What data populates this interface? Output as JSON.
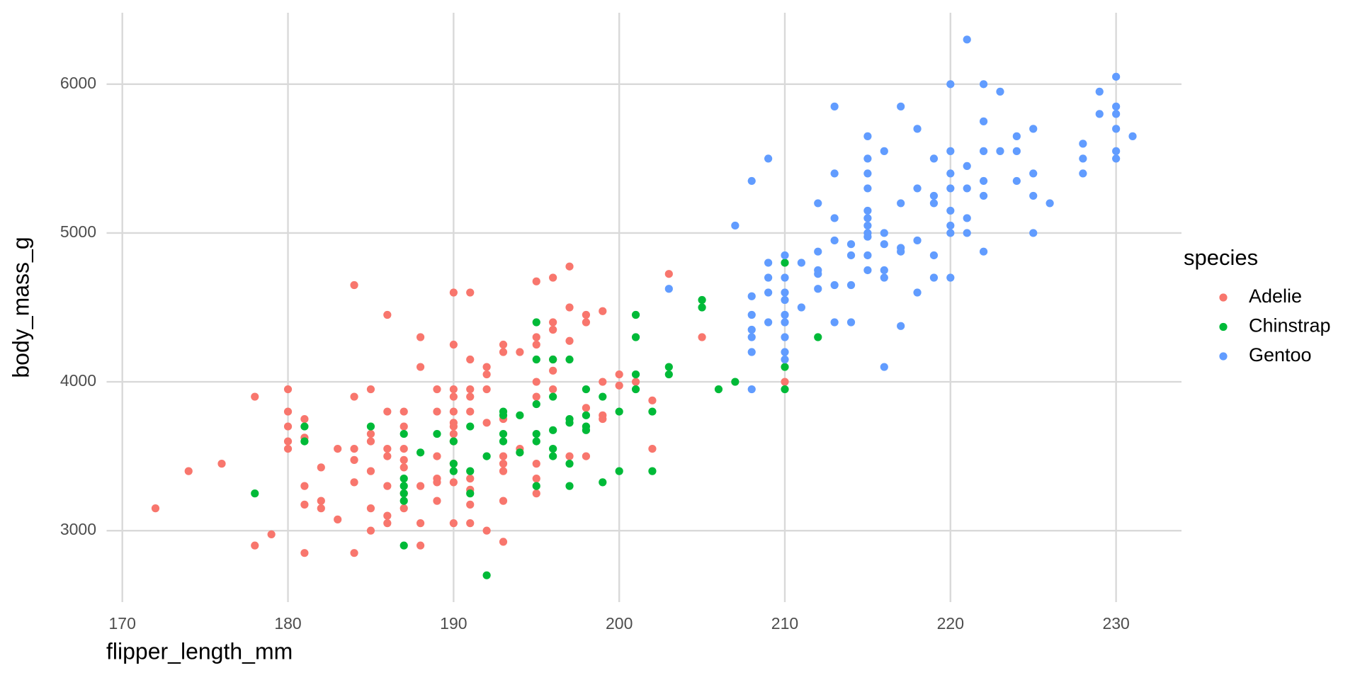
{
  "chart_data": {
    "type": "scatter",
    "x_label": "flipper_length_mm",
    "y_label": "body_mass_g",
    "legend_title": "species",
    "legend_position": "right",
    "grid": true,
    "xlim": [
      169.05,
      233.95
    ],
    "xticks": [
      170,
      180,
      190,
      200,
      210,
      220,
      230
    ],
    "ylim": [
      2520,
      6480
    ],
    "yticks": [
      3000,
      4000,
      5000,
      6000
    ],
    "series": [
      {
        "name": "Adelie",
        "color": "#F8766D",
        "x": [
          172,
          174,
          176,
          178,
          178,
          179,
          180,
          180,
          180,
          180,
          180,
          181,
          181,
          181,
          181,
          181,
          182,
          182,
          182,
          183,
          183,
          184,
          184,
          184,
          184,
          184,
          184,
          185,
          185,
          185,
          185,
          185,
          185,
          186,
          186,
          186,
          186,
          186,
          186,
          186,
          187,
          187,
          187,
          187,
          187,
          187,
          187,
          188,
          188,
          188,
          188,
          188,
          189,
          189,
          189,
          189,
          189,
          189,
          190,
          190,
          190,
          190,
          190,
          190,
          190,
          190,
          190,
          190,
          190,
          190,
          191,
          191,
          191,
          191,
          191,
          191,
          191,
          191,
          191,
          192,
          192,
          192,
          192,
          192,
          193,
          193,
          193,
          193,
          193,
          193,
          193,
          193,
          194,
          194,
          195,
          195,
          195,
          195,
          195,
          195,
          195,
          195,
          196,
          196,
          196,
          196,
          196,
          196,
          197,
          197,
          197,
          197,
          198,
          198,
          198,
          198,
          199,
          199,
          199,
          199,
          200,
          200,
          201,
          202,
          202,
          203,
          205,
          210
        ],
        "values": [
          3150,
          3400,
          3450,
          3900,
          2900,
          2975,
          3950,
          3800,
          3700,
          3600,
          3550,
          3750,
          3625,
          3300,
          3175,
          2850,
          3425,
          3200,
          3150,
          3550,
          3075,
          4650,
          3900,
          3550,
          3475,
          3325,
          2850,
          3950,
          3650,
          3600,
          3400,
          3150,
          3000,
          4450,
          3800,
          3550,
          3500,
          3300,
          3100,
          3050,
          3800,
          3700,
          3550,
          3475,
          3425,
          3250,
          3150,
          4300,
          4100,
          3300,
          3050,
          2900,
          3950,
          3800,
          3500,
          3350,
          3325,
          3200,
          4600,
          4250,
          3950,
          3900,
          3800,
          3725,
          3700,
          3650,
          3600,
          3450,
          3325,
          3050,
          4600,
          4150,
          3950,
          3900,
          3800,
          3350,
          3275,
          3175,
          3050,
          4100,
          4050,
          3950,
          3725,
          3000,
          4250,
          4200,
          3750,
          3500,
          3450,
          3400,
          3200,
          2925,
          4200,
          3550,
          4675,
          4300,
          4250,
          4000,
          3900,
          3450,
          3350,
          3250,
          4700,
          4400,
          4350,
          4150,
          4075,
          3950,
          4775,
          4500,
          4275,
          3500,
          4450,
          4400,
          3825,
          3500,
          4475,
          4000,
          3775,
          3750,
          4050,
          3975,
          4000,
          3875,
          3550,
          4725,
          4300,
          4000
        ]
      },
      {
        "name": "Chinstrap",
        "color": "#00BA38",
        "x": [
          178,
          181,
          181,
          185,
          187,
          187,
          187,
          187,
          187,
          187,
          188,
          189,
          190,
          190,
          190,
          191,
          191,
          191,
          192,
          192,
          193,
          193,
          193,
          193,
          194,
          194,
          195,
          195,
          195,
          195,
          195,
          195,
          196,
          196,
          196,
          196,
          196,
          197,
          197,
          197,
          197,
          197,
          198,
          198,
          198,
          198,
          199,
          199,
          200,
          200,
          201,
          201,
          201,
          201,
          202,
          202,
          203,
          203,
          205,
          205,
          206,
          207,
          210,
          210,
          210,
          212
        ],
        "values": [
          3250,
          3700,
          3600,
          3700,
          3650,
          3350,
          3300,
          3250,
          3200,
          2900,
          3525,
          3650,
          3600,
          3450,
          3400,
          3700,
          3400,
          3250,
          3500,
          2700,
          3800,
          3775,
          3650,
          3600,
          3775,
          3525,
          4400,
          4150,
          3850,
          3650,
          3600,
          3300,
          4150,
          3900,
          3675,
          3550,
          3500,
          4150,
          3750,
          3725,
          3450,
          3300,
          3950,
          3775,
          3700,
          3675,
          3900,
          3325,
          3800,
          3400,
          4450,
          4300,
          4050,
          3950,
          3800,
          3400,
          4100,
          4050,
          4550,
          4500,
          3950,
          4000,
          4800,
          4100,
          3950,
          4300
        ]
      },
      {
        "name": "Gentoo",
        "color": "#619CFF",
        "x": [
          203,
          207,
          208,
          208,
          208,
          208,
          208,
          208,
          208,
          209,
          209,
          209,
          209,
          209,
          210,
          210,
          210,
          210,
          210,
          210,
          210,
          210,
          210,
          211,
          211,
          212,
          212,
          212,
          212,
          212,
          213,
          213,
          213,
          213,
          213,
          213,
          214,
          214,
          214,
          214,
          215,
          215,
          215,
          215,
          215,
          215,
          215,
          215,
          215,
          215,
          215,
          216,
          216,
          216,
          216,
          216,
          216,
          217,
          217,
          217,
          217,
          217,
          218,
          218,
          218,
          218,
          219,
          219,
          219,
          219,
          219,
          220,
          220,
          220,
          220,
          220,
          220,
          220,
          220,
          221,
          221,
          221,
          221,
          221,
          222,
          222,
          222,
          222,
          222,
          222,
          223,
          223,
          224,
          224,
          224,
          225,
          225,
          225,
          225,
          226,
          228,
          228,
          228,
          229,
          229,
          230,
          230,
          230,
          230,
          230,
          230,
          231
        ],
        "values": [
          4625,
          5050,
          5350,
          4575,
          4450,
          4350,
          4300,
          4200,
          3950,
          5500,
          4800,
          4700,
          4600,
          4400,
          4850,
          4700,
          4600,
          4550,
          4450,
          4400,
          4300,
          4200,
          4150,
          4800,
          4500,
          5200,
          4875,
          4750,
          4725,
          4625,
          5850,
          5400,
          5100,
          4950,
          4650,
          4400,
          4925,
          4850,
          4650,
          4400,
          5650,
          5500,
          5400,
          5300,
          5150,
          5100,
          5050,
          5000,
          4975,
          4850,
          4750,
          5550,
          5000,
          4925,
          4750,
          4700,
          4100,
          5850,
          5200,
          4900,
          4875,
          4375,
          5700,
          5300,
          4950,
          4600,
          5500,
          5250,
          5200,
          4850,
          4700,
          6000,
          5550,
          5400,
          5300,
          5150,
          5050,
          5000,
          4700,
          6300,
          5450,
          5300,
          5100,
          5000,
          6000,
          5750,
          5550,
          5350,
          5250,
          4875,
          5950,
          5550,
          5650,
          5550,
          5350,
          5700,
          5400,
          5250,
          5000,
          5200,
          5600,
          5500,
          5400,
          5950,
          5800,
          6050,
          5850,
          5800,
          5700,
          5550,
          5500,
          5650
        ]
      }
    ]
  }
}
